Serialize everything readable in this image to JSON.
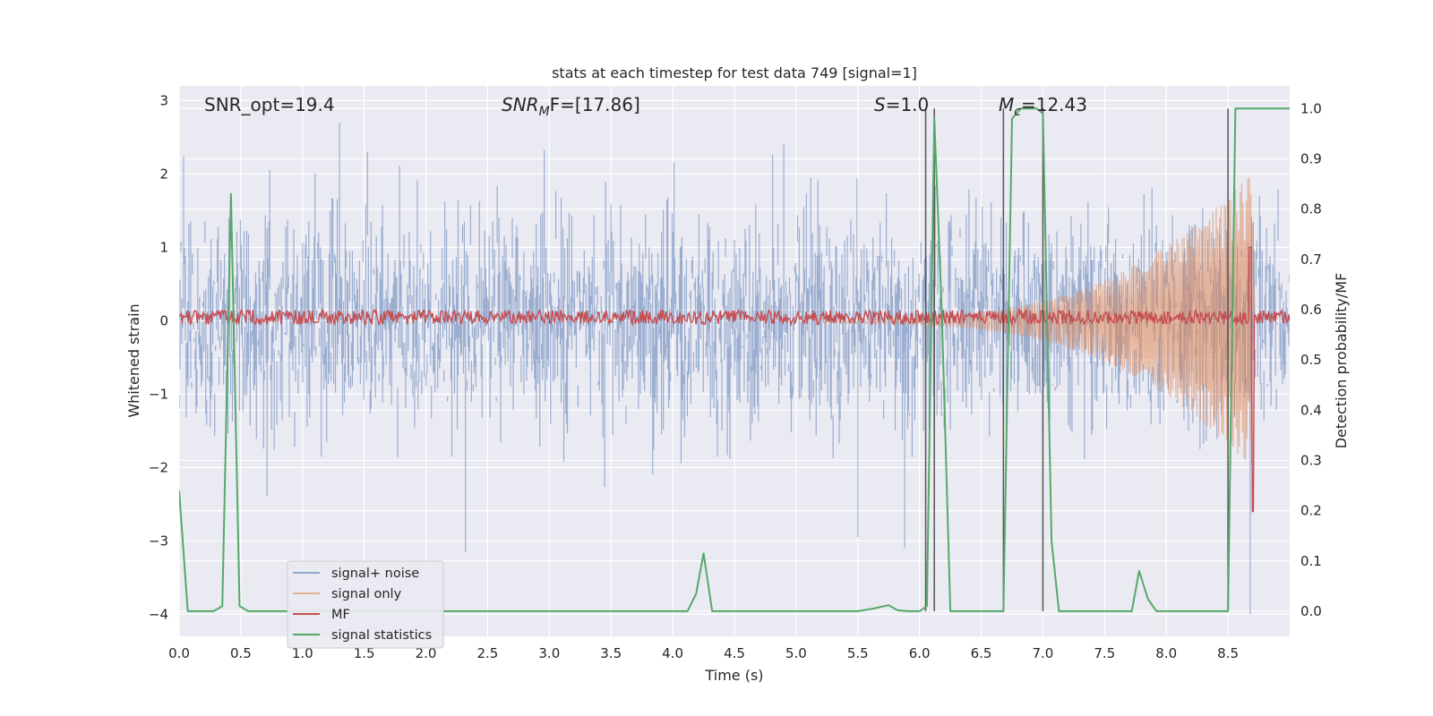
{
  "chart_data": {
    "type": "line",
    "title": "stats at each timestep for test data 749 [signal=1]",
    "xlabel": "Time (s)",
    "ylabel": "Whitened strain",
    "ylabel_right": "Detection probability/MF",
    "xlim": [
      0.0,
      9.0
    ],
    "ylim": [
      -4.3,
      3.2
    ],
    "ylim_right": [
      -0.05,
      1.045
    ],
    "x_ticks": [
      0.0,
      0.5,
      1.0,
      1.5,
      2.0,
      2.5,
      3.0,
      3.5,
      4.0,
      4.5,
      5.0,
      5.5,
      6.0,
      6.5,
      7.0,
      7.5,
      8.0,
      8.5
    ],
    "x_tick_labels": [
      "0.0",
      "0.5",
      "1.0",
      "1.5",
      "2.0",
      "2.5",
      "3.0",
      "3.5",
      "4.0",
      "4.5",
      "5.0",
      "5.5",
      "6.0",
      "6.5",
      "7.0",
      "7.5",
      "8.0",
      "8.5"
    ],
    "y_ticks": [
      3,
      2,
      1,
      0,
      -1,
      -2,
      -3,
      -4
    ],
    "y_tick_labels": [
      "3",
      "2",
      "1",
      "0",
      "−1",
      "−2",
      "−3",
      "−4"
    ],
    "y_ticks_right": [
      1.0,
      0.9,
      0.8,
      0.7,
      0.6,
      0.5,
      0.4,
      0.3,
      0.2,
      0.1,
      0.0
    ],
    "y_tick_labels_right": [
      "1.0",
      "0.9",
      "0.8",
      "0.7",
      "0.6",
      "0.5",
      "0.4",
      "0.3",
      "0.2",
      "0.1",
      "0.0"
    ],
    "annotations": {
      "snr_opt": "SNR_opt=19.4",
      "snr_mf_base": "SNR",
      "snr_mf_sub": "M",
      "snr_mf_tail": "F=[17.86]",
      "s_base": "S",
      "s_tail": "=1.0",
      "mc_base": "M",
      "mc_sub": "c",
      "mc_tail": "=12.43"
    },
    "legend": {
      "position": "lower-left",
      "entries": [
        {
          "label": "signal+ noise",
          "color": "#4c72b0"
        },
        {
          "label": "signal only",
          "color": "#dd8452"
        },
        {
          "label": "MF",
          "color": "#c44e52"
        },
        {
          "label": "signal statistics",
          "color": "#55a868"
        }
      ]
    },
    "vlines": [
      6.05,
      6.12,
      6.68,
      7.0,
      8.5
    ],
    "series": [
      {
        "name": "signal statistics",
        "axis": "right",
        "color": "#55a868",
        "x": [
          0.0,
          0.07,
          0.14,
          0.21,
          0.28,
          0.35,
          0.42,
          0.49,
          0.56,
          0.63,
          0.7,
          0.8,
          1.0,
          1.5,
          2.0,
          2.5,
          3.0,
          3.5,
          4.0,
          4.12,
          4.19,
          4.25,
          4.32,
          4.39,
          4.5,
          5.0,
          5.5,
          5.62,
          5.75,
          5.82,
          5.9,
          6.0,
          6.06,
          6.12,
          6.18,
          6.25,
          6.35,
          6.5,
          6.6,
          6.68,
          6.75,
          6.82,
          6.95,
          7.0,
          7.07,
          7.13,
          7.25,
          7.5,
          7.72,
          7.78,
          7.85,
          7.92,
          8.0,
          8.3,
          8.5,
          8.56,
          8.63,
          8.75,
          9.0
        ],
        "y": [
          0.24,
          0.0,
          0.0,
          0.0,
          0.0,
          0.01,
          0.83,
          0.01,
          0.0,
          0.0,
          0.0,
          0.0,
          0.0,
          0.0,
          0.0,
          0.0,
          0.0,
          0.0,
          0.0,
          0.0,
          0.035,
          0.115,
          0.0,
          0.0,
          0.0,
          0.0,
          0.0,
          0.005,
          0.012,
          0.002,
          0.0,
          0.0,
          0.01,
          0.98,
          0.6,
          0.0,
          0.0,
          0.0,
          0.0,
          0.0,
          0.98,
          1.0,
          1.0,
          0.99,
          0.14,
          0.0,
          0.0,
          0.0,
          0.0,
          0.08,
          0.025,
          0.0,
          0.0,
          0.0,
          0.0,
          1.0,
          1.0,
          1.0,
          1.0
        ]
      },
      {
        "name": "signal+ noise",
        "axis": "left",
        "color": "#4c72b0",
        "style": "dense noise band, peaks approx ±2.7"
      },
      {
        "name": "signal only",
        "axis": "left",
        "color": "#dd8452",
        "style": "chirp rising from ~0 near 5.5 s to ~2.0 near 8.7 s"
      },
      {
        "name": "MF",
        "axis": "left",
        "color": "#c44e52",
        "style": "flat band near 0.05 with spike to ~1.0 near 8.7 s"
      }
    ]
  }
}
